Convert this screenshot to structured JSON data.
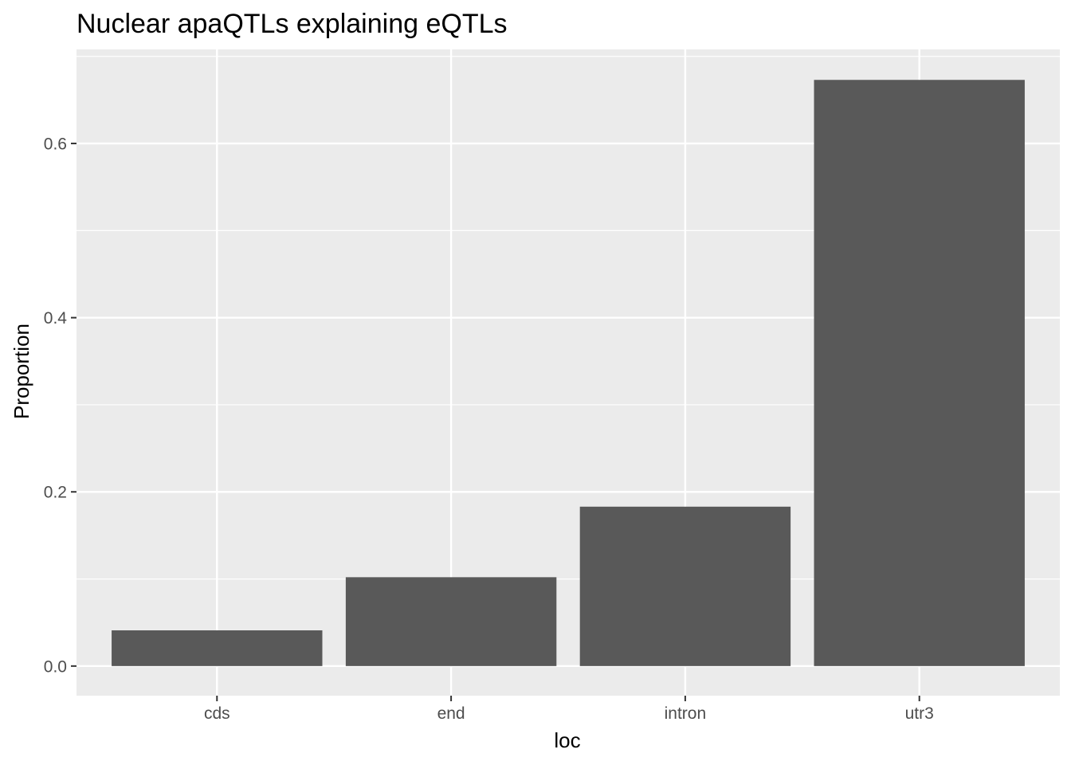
{
  "chart_data": {
    "type": "bar",
    "title": "Nuclear apaQTLs explaining eQTLs",
    "xlabel": "loc",
    "ylabel": "Proportion",
    "categories": [
      "cds",
      "end",
      "intron",
      "utr3"
    ],
    "values": [
      0.041,
      0.102,
      0.183,
      0.673
    ],
    "ylim": [
      -0.034,
      0.708
    ],
    "yticks": [
      0.0,
      0.2,
      0.4,
      0.6
    ],
    "ytick_labels": [
      "0.0",
      "0.2",
      "0.4",
      "0.6"
    ],
    "grid": true,
    "colors": {
      "panel_background": "#ebebeb",
      "grid": "#ffffff",
      "bar_fill": "#595959",
      "tick_text": "#4d4d4d",
      "tick_mark": "#333333"
    }
  }
}
